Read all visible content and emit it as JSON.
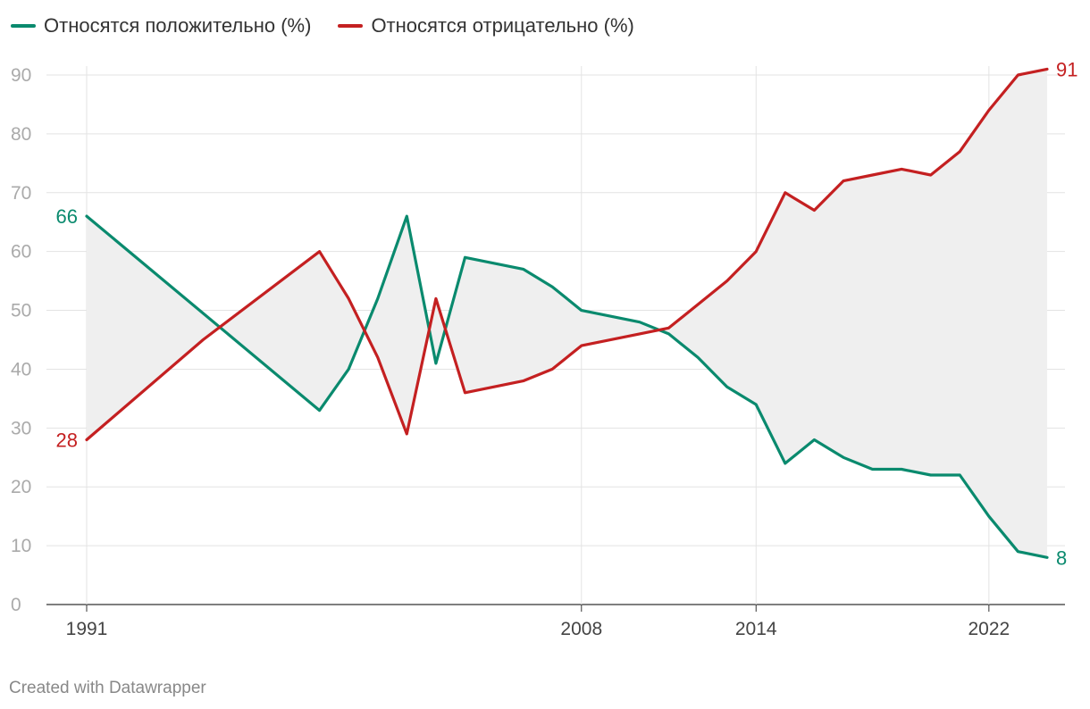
{
  "chart_data": {
    "type": "line",
    "title": "",
    "xlabel": "",
    "ylabel": "",
    "ylim": [
      0,
      90
    ],
    "yticks": [
      0,
      10,
      20,
      30,
      40,
      50,
      60,
      70,
      80,
      90
    ],
    "xlim": [
      1991,
      2024
    ],
    "xticks": [
      1991,
      2008,
      2014,
      2022
    ],
    "grid": true,
    "legend_position": "top-left",
    "shaded_area_between_series": true,
    "series": [
      {
        "name": "Относятся положительно (%)",
        "color": "#0a8a6e",
        "x": [
          1991,
          1999,
          2000,
          2001,
          2002,
          2003,
          2004,
          2006,
          2007,
          2008,
          2010,
          2011,
          2012,
          2013,
          2014,
          2015,
          2016,
          2017,
          2018,
          2019,
          2020,
          2021,
          2022,
          2023,
          2024
        ],
        "values": [
          66,
          33,
          40,
          52,
          66,
          41,
          59,
          57,
          54,
          50,
          48,
          46,
          42,
          37,
          34,
          24,
          28,
          25,
          23,
          23,
          22,
          22,
          15,
          9,
          8
        ],
        "first_label": "66",
        "last_label": "8"
      },
      {
        "name": "Относятся отрицательно (%)",
        "color": "#c42021",
        "x": [
          1991,
          1995,
          1999,
          2000,
          2001,
          2002,
          2003,
          2004,
          2006,
          2007,
          2008,
          2010,
          2011,
          2012,
          2013,
          2014,
          2015,
          2016,
          2017,
          2018,
          2019,
          2020,
          2021,
          2022,
          2023,
          2024
        ],
        "values": [
          28,
          45,
          60,
          52,
          42,
          29,
          52,
          36,
          38,
          40,
          44,
          46,
          47,
          51,
          55,
          60,
          70,
          67,
          72,
          73,
          74,
          73,
          77,
          84,
          90,
          91
        ],
        "first_label": "28",
        "last_label": "91"
      }
    ]
  },
  "footer": {
    "credit": "Created with Datawrapper"
  }
}
